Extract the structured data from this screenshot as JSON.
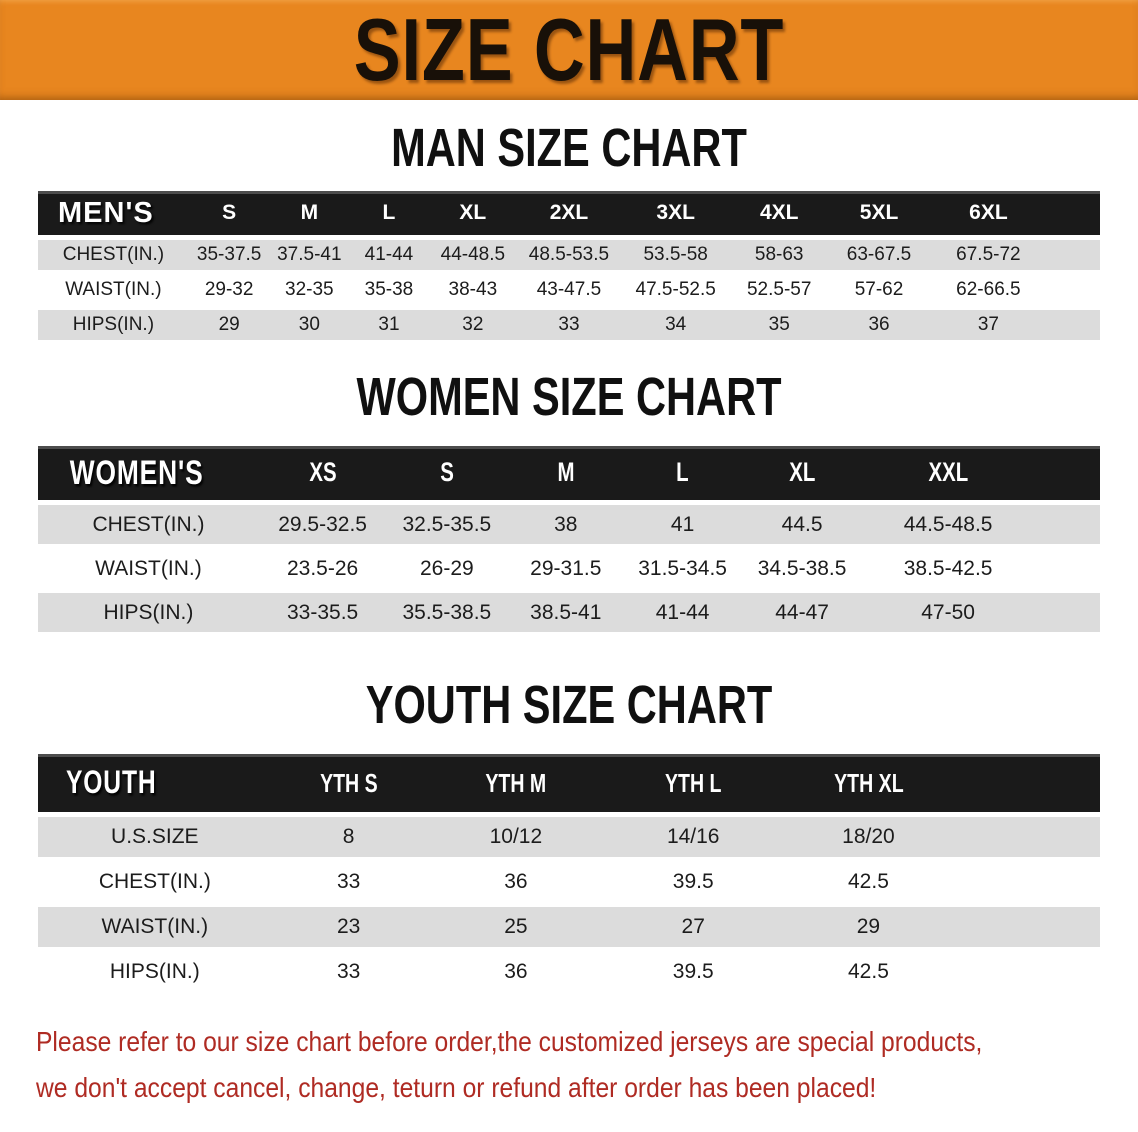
{
  "banner": {
    "title": "SIZE CHART",
    "bg_color": "#E8861F",
    "text_color": "#181008"
  },
  "colors": {
    "header_bar": "#1A1A1A",
    "row_stripe": "#DCDCDC",
    "note_text": "#AF2B23"
  },
  "sections": [
    {
      "heading": "MAN SIZE CHART",
      "table": {
        "header_label": "MEN'S",
        "columns": [
          "S",
          "M",
          "L",
          "XL",
          "2XL",
          "3XL",
          "4XL",
          "5XL",
          "6XL"
        ],
        "rows": [
          {
            "label": "CHEST(IN.)",
            "values": [
              "35-37.5",
              "37.5-41",
              "41-44",
              "44-48.5",
              "48.5-53.5",
              "53.5-58",
              "58-63",
              "63-67.5",
              "67.5-72"
            ]
          },
          {
            "label": "WAIST(IN.)",
            "values": [
              "29-32",
              "32-35",
              "35-38",
              "38-43",
              "43-47.5",
              "47.5-52.5",
              "52.5-57",
              "57-62",
              "62-66.5"
            ]
          },
          {
            "label": "HIPS(IN.)",
            "values": [
              "29",
              "30",
              "31",
              "32",
              "33",
              "34",
              "35",
              "36",
              "37"
            ]
          }
        ]
      }
    },
    {
      "heading": "WOMEN SIZE CHART",
      "table": {
        "header_label": "WOMEN'S",
        "columns": [
          "XS",
          "S",
          "M",
          "L",
          "XL",
          "XXL"
        ],
        "rows": [
          {
            "label": "CHEST(IN.)",
            "values": [
              "29.5-32.5",
              "32.5-35.5",
              "38",
              "41",
              "44.5",
              "44.5-48.5"
            ]
          },
          {
            "label": "WAIST(IN.)",
            "values": [
              "23.5-26",
              "26-29",
              "29-31.5",
              "31.5-34.5",
              "34.5-38.5",
              "38.5-42.5"
            ]
          },
          {
            "label": "HIPS(IN.)",
            "values": [
              "33-35.5",
              "35.5-38.5",
              "38.5-41",
              "41-44",
              "44-47",
              "47-50"
            ]
          }
        ]
      }
    },
    {
      "heading": "YOUTH SIZE CHART",
      "table": {
        "header_label": "YOUTH",
        "columns": [
          "YTH S",
          "YTH M",
          "YTH L",
          "YTH XL"
        ],
        "rows": [
          {
            "label": "U.S.SIZE",
            "values": [
              "8",
              "10/12",
              "14/16",
              "18/20"
            ]
          },
          {
            "label": "CHEST(IN.)",
            "values": [
              "33",
              "36",
              "39.5",
              "42.5"
            ]
          },
          {
            "label": "WAIST(IN.)",
            "values": [
              "23",
              "25",
              "27",
              "29"
            ]
          },
          {
            "label": "HIPS(IN.)",
            "values": [
              "33",
              "36",
              "39.5",
              "42.5"
            ]
          }
        ]
      }
    }
  ],
  "footer_note": {
    "line1": "Please refer to our size chart before order,the customized jerseys are special products,",
    "line2": "we don't accept cancel, change, teturn or refund after order has been placed!"
  }
}
